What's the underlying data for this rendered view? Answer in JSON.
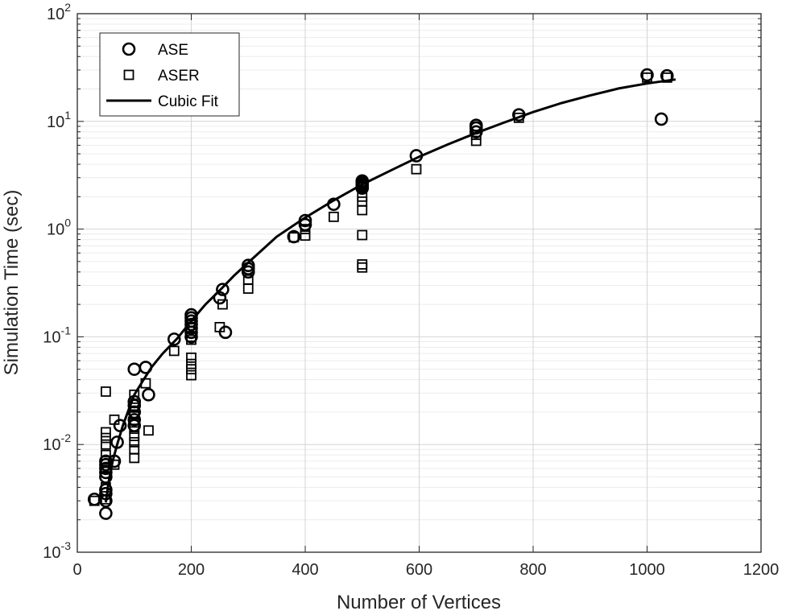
{
  "chart_data": {
    "type": "scatter",
    "xlabel": "Number of Vertices",
    "ylabel": "Simulation Time (sec)",
    "xlim": [
      0,
      1200
    ],
    "ylim": [
      0.001,
      100
    ],
    "yscale": "log",
    "grid": true,
    "minor_grid": true,
    "legend_position": "top-left",
    "x_ticks": [
      0,
      200,
      400,
      600,
      800,
      1000,
      1200
    ],
    "x_tick_labels": [
      "0",
      "200",
      "400",
      "600",
      "800",
      "1000",
      "1200"
    ],
    "y_tick_exponents": [
      "-3",
      "-2",
      "-1",
      "0",
      "1",
      "2"
    ],
    "y_tick_base": "10",
    "series": [
      {
        "name": "ASE",
        "marker": "circle",
        "color": "#000000",
        "points": [
          [
            30,
            0.0031
          ],
          [
            50,
            0.0023
          ],
          [
            50,
            0.003
          ],
          [
            50,
            0.0035
          ],
          [
            50,
            0.0038
          ],
          [
            50,
            0.005
          ],
          [
            50,
            0.0055
          ],
          [
            50,
            0.006
          ],
          [
            50,
            0.0065
          ],
          [
            50,
            0.007
          ],
          [
            65,
            0.007
          ],
          [
            70,
            0.0105
          ],
          [
            75,
            0.015
          ],
          [
            100,
            0.015
          ],
          [
            100,
            0.017
          ],
          [
            100,
            0.02
          ],
          [
            100,
            0.023
          ],
          [
            100,
            0.025
          ],
          [
            100,
            0.05
          ],
          [
            120,
            0.052
          ],
          [
            125,
            0.029
          ],
          [
            170,
            0.095
          ],
          [
            200,
            0.1
          ],
          [
            200,
            0.11
          ],
          [
            200,
            0.12
          ],
          [
            200,
            0.13
          ],
          [
            200,
            0.14
          ],
          [
            200,
            0.15
          ],
          [
            200,
            0.16
          ],
          [
            250,
            0.23
          ],
          [
            255,
            0.275
          ],
          [
            260,
            0.11
          ],
          [
            300,
            0.4
          ],
          [
            300,
            0.43
          ],
          [
            300,
            0.46
          ],
          [
            380,
            0.85
          ],
          [
            400,
            1.1
          ],
          [
            400,
            1.2
          ],
          [
            450,
            1.7
          ],
          [
            500,
            2.4
          ],
          [
            500,
            2.5
          ],
          [
            500,
            2.6
          ],
          [
            500,
            2.7
          ],
          [
            500,
            2.8
          ],
          [
            595,
            4.8
          ],
          [
            700,
            8.0
          ],
          [
            700,
            8.7
          ],
          [
            700,
            9.2
          ],
          [
            775,
            11.5
          ],
          [
            1000,
            27.0
          ],
          [
            1025,
            10.5
          ],
          [
            1035,
            26.5
          ]
        ]
      },
      {
        "name": "ASER",
        "marker": "square",
        "color": "#000000",
        "points": [
          [
            30,
            0.003
          ],
          [
            50,
            0.0031
          ],
          [
            50,
            0.004
          ],
          [
            50,
            0.006
          ],
          [
            50,
            0.007
          ],
          [
            50,
            0.008
          ],
          [
            50,
            0.01
          ],
          [
            50,
            0.0115
          ],
          [
            50,
            0.013
          ],
          [
            50,
            0.031
          ],
          [
            65,
            0.0065
          ],
          [
            65,
            0.017
          ],
          [
            100,
            0.0075
          ],
          [
            100,
            0.009
          ],
          [
            100,
            0.0105
          ],
          [
            100,
            0.012
          ],
          [
            100,
            0.014
          ],
          [
            100,
            0.016
          ],
          [
            100,
            0.019
          ],
          [
            100,
            0.022
          ],
          [
            100,
            0.029
          ],
          [
            120,
            0.037
          ],
          [
            125,
            0.0135
          ],
          [
            170,
            0.074
          ],
          [
            200,
            0.044
          ],
          [
            200,
            0.05
          ],
          [
            200,
            0.056
          ],
          [
            200,
            0.064
          ],
          [
            200,
            0.094
          ],
          [
            200,
            0.1
          ],
          [
            250,
            0.123
          ],
          [
            255,
            0.2
          ],
          [
            300,
            0.28
          ],
          [
            300,
            0.34
          ],
          [
            380,
            0.84
          ],
          [
            400,
            0.87
          ],
          [
            400,
            1.0
          ],
          [
            450,
            1.3
          ],
          [
            500,
            0.44
          ],
          [
            500,
            0.47
          ],
          [
            500,
            0.88
          ],
          [
            500,
            1.5
          ],
          [
            500,
            1.8
          ],
          [
            500,
            2.0
          ],
          [
            595,
            3.6
          ],
          [
            700,
            6.6
          ],
          [
            700,
            7.5
          ],
          [
            775,
            10.8
          ],
          [
            1000,
            25.5
          ],
          [
            1035,
            25.5
          ]
        ]
      },
      {
        "name": "Cubic Fit",
        "marker": "line",
        "color": "#000000",
        "points": [
          [
            50,
            0.0029
          ],
          [
            55,
            0.0045
          ],
          [
            62,
            0.007
          ],
          [
            70,
            0.01
          ],
          [
            80,
            0.015
          ],
          [
            90,
            0.021
          ],
          [
            100,
            0.029
          ],
          [
            115,
            0.039
          ],
          [
            130,
            0.052
          ],
          [
            150,
            0.07
          ],
          [
            175,
            0.096
          ],
          [
            200,
            0.14
          ],
          [
            225,
            0.2
          ],
          [
            250,
            0.27
          ],
          [
            275,
            0.37
          ],
          [
            300,
            0.49
          ],
          [
            350,
            0.85
          ],
          [
            400,
            1.28
          ],
          [
            450,
            1.85
          ],
          [
            500,
            2.6
          ],
          [
            550,
            3.5
          ],
          [
            600,
            4.7
          ],
          [
            650,
            6.1
          ],
          [
            700,
            7.8
          ],
          [
            750,
            9.8
          ],
          [
            800,
            12.2
          ],
          [
            850,
            14.8
          ],
          [
            900,
            17.4
          ],
          [
            950,
            20.2
          ],
          [
            1000,
            22.5
          ],
          [
            1050,
            24.5
          ]
        ]
      }
    ]
  }
}
